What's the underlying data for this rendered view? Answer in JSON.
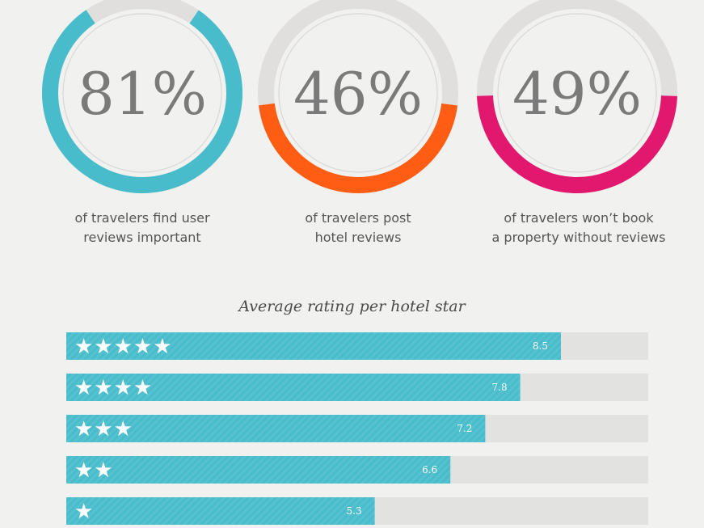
{
  "colors": {
    "background": "#f1f1f0",
    "ring_track": "#e0dfde",
    "ring_inner": "#d8d8d8",
    "bar_track": "#e2e2e1",
    "bar_fill": "#49bccb",
    "accent_blue": "#49bccb",
    "accent_orange": "#ff5c14",
    "accent_pink": "#e2186e"
  },
  "chart_data": [
    {
      "type": "pie",
      "items": [
        {
          "value": 81,
          "label": "81%",
          "caption": "of travelers find user\nreviews important",
          "color": "#49bccb"
        },
        {
          "value": 46,
          "label": "46%",
          "caption": "of travelers post\nhotel reviews",
          "color": "#ff5c14"
        },
        {
          "value": 49,
          "label": "49%",
          "caption": "of travelers won’t book\na property without reviews",
          "color": "#e2186e"
        }
      ]
    },
    {
      "type": "bar",
      "orientation": "horizontal",
      "title": "Average rating per hotel star",
      "xlim": [
        0,
        10
      ],
      "categories": [
        "★★★★★",
        "★★★★",
        "★★★",
        "★★",
        "★"
      ],
      "values": [
        8.5,
        7.8,
        7.2,
        6.6,
        5.3
      ],
      "value_labels": [
        "8.5",
        "7.8",
        "7.2",
        "6.6",
        "5.3"
      ]
    }
  ]
}
